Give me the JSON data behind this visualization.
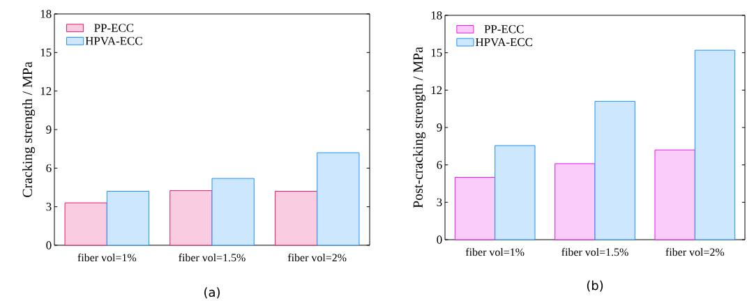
{
  "chart_data": [
    {
      "type": "bar",
      "ylabel": "Cracking strength / MPa",
      "categories": [
        "fiber vol=1%",
        "fiber vol=1.5%",
        "fiber vol=2%"
      ],
      "series": [
        {
          "name": "PP-ECC",
          "color": "#e6196e",
          "values": [
            3.3,
            4.25,
            4.2
          ]
        },
        {
          "name": "HPVA-ECC",
          "color": "#1e90ff",
          "values": [
            4.2,
            5.2,
            7.2
          ]
        }
      ],
      "ylim": [
        0,
        18
      ],
      "yticks": [
        0,
        3,
        6,
        9,
        12,
        15,
        18
      ],
      "legend": "top left",
      "grid": false,
      "annotations": [
        "(a)"
      ]
    },
    {
      "type": "bar",
      "ylabel": "Post-cracking strength / MPa",
      "categories": [
        "fiber vol=1%",
        "fiber vol=1.5%",
        "fiber vol=2%"
      ],
      "series": [
        {
          "name": "PP-ECC",
          "color": "#e619e6",
          "values": [
            5.0,
            6.1,
            7.2
          ]
        },
        {
          "name": "HPVA-ECC",
          "color": "#1e90ff",
          "values": [
            7.55,
            11.1,
            15.2
          ]
        }
      ],
      "ylim": [
        0,
        18
      ],
      "yticks": [
        0,
        3,
        6,
        9,
        12,
        15,
        18
      ],
      "legend": "top left",
      "grid": false,
      "annotations": [
        "(b)"
      ]
    }
  ]
}
